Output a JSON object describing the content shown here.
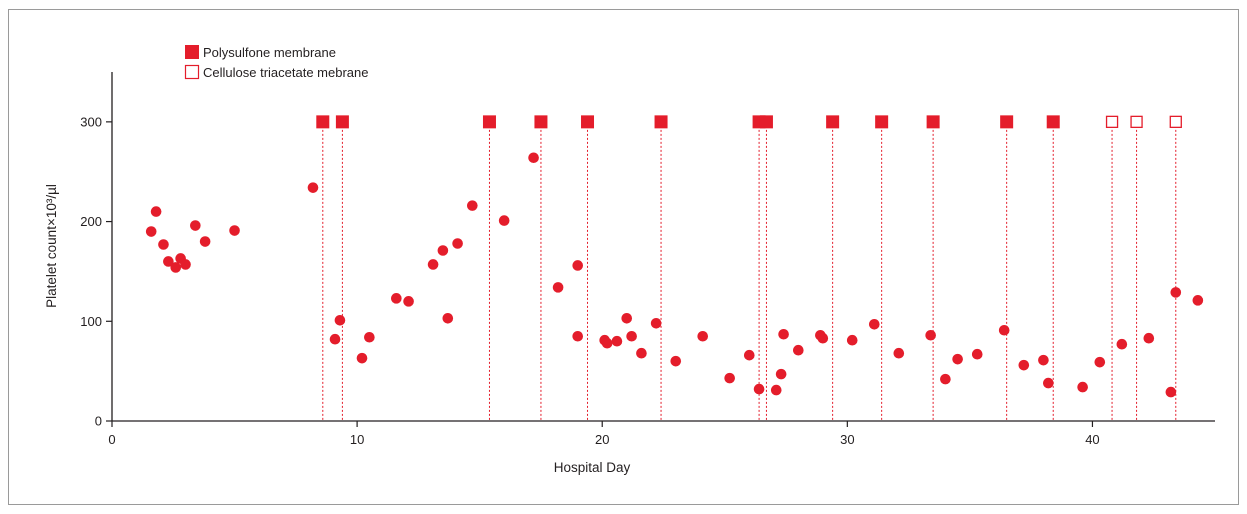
{
  "chart_data": {
    "type": "scatter",
    "xlabel": "Hospital Day",
    "ylabel": "Platelet count×10³/µl",
    "xlim": [
      0,
      45
    ],
    "ylim": [
      0,
      350
    ],
    "xticks": [
      0,
      10,
      20,
      30,
      40
    ],
    "yticks": [
      0,
      100,
      200,
      300
    ],
    "grid": false,
    "legend_position": "top-left",
    "colors": {
      "marker": "#e41d2b",
      "axis": "#231f20"
    },
    "series": [
      {
        "name": "",
        "marker": "filled-circle",
        "points": [
          [
            1.6,
            190
          ],
          [
            1.8,
            210
          ],
          [
            2.1,
            177
          ],
          [
            2.3,
            160
          ],
          [
            2.6,
            154
          ],
          [
            2.8,
            163
          ],
          [
            3.0,
            157
          ],
          [
            3.4,
            196
          ],
          [
            3.8,
            180
          ],
          [
            5.0,
            191
          ],
          [
            8.2,
            234
          ],
          [
            9.1,
            82
          ],
          [
            9.3,
            101
          ],
          [
            10.2,
            63
          ],
          [
            10.5,
            84
          ],
          [
            11.6,
            123
          ],
          [
            12.1,
            120
          ],
          [
            13.1,
            157
          ],
          [
            13.5,
            171
          ],
          [
            13.7,
            103
          ],
          [
            14.1,
            178
          ],
          [
            14.7,
            216
          ],
          [
            16.0,
            201
          ],
          [
            17.2,
            264
          ],
          [
            18.2,
            134
          ],
          [
            19.0,
            156
          ],
          [
            19.0,
            85
          ],
          [
            20.1,
            81
          ],
          [
            20.2,
            78
          ],
          [
            20.6,
            80
          ],
          [
            21.0,
            103
          ],
          [
            21.2,
            85
          ],
          [
            21.6,
            68
          ],
          [
            22.2,
            98
          ],
          [
            23.0,
            60
          ],
          [
            24.1,
            85
          ],
          [
            25.2,
            43
          ],
          [
            26.0,
            66
          ],
          [
            26.4,
            32
          ],
          [
            27.1,
            31
          ],
          [
            27.3,
            47
          ],
          [
            27.4,
            87
          ],
          [
            28.0,
            71
          ],
          [
            28.9,
            86
          ],
          [
            29.0,
            83
          ],
          [
            30.2,
            81
          ],
          [
            31.1,
            97
          ],
          [
            32.1,
            68
          ],
          [
            33.4,
            86
          ],
          [
            34.0,
            42
          ],
          [
            34.5,
            62
          ],
          [
            35.3,
            67
          ],
          [
            36.4,
            91
          ],
          [
            37.2,
            56
          ],
          [
            38.0,
            61
          ],
          [
            38.2,
            38
          ],
          [
            39.6,
            34
          ],
          [
            40.3,
            59
          ],
          [
            41.2,
            77
          ],
          [
            42.3,
            83
          ],
          [
            43.2,
            29
          ],
          [
            43.4,
            129
          ],
          [
            44.3,
            121
          ]
        ]
      },
      {
        "name": "Polysulfone membrane",
        "marker": "filled-square",
        "y": 300,
        "x": [
          8.6,
          9.4,
          15.4,
          17.5,
          19.4,
          22.4,
          26.4,
          26.7,
          29.4,
          31.4,
          33.5,
          36.5,
          38.4
        ]
      },
      {
        "name": "Cellulose triacetate mebrane",
        "marker": "open-square",
        "y": 300,
        "x": [
          40.8,
          41.8,
          43.4
        ]
      }
    ]
  }
}
